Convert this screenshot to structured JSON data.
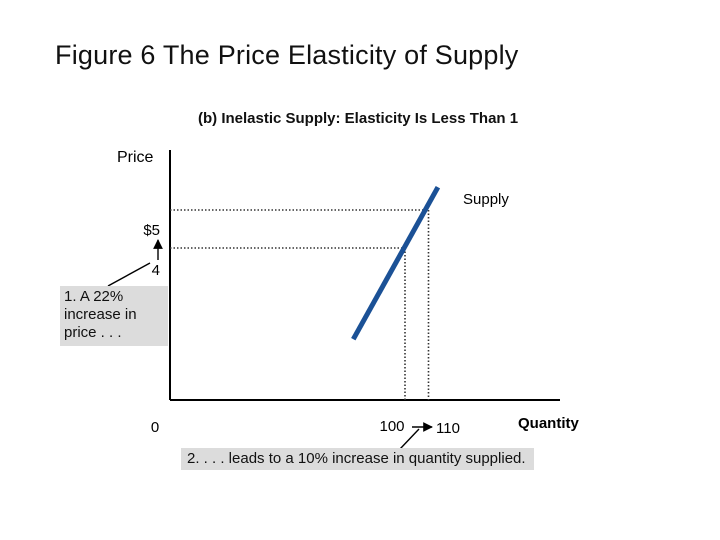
{
  "title": "Figure 6 The Price Elasticity of Supply",
  "chart_data": {
    "type": "line",
    "subtitle": "(b) Inelastic Supply: Elasticity Is Less Than 1",
    "ylabel": "Price",
    "xlabel": "Quantity",
    "series": [
      {
        "name": "Supply",
        "x": [
          78,
          114
        ],
        "y": [
          1.6,
          5.6
        ]
      }
    ],
    "points": [
      {
        "x": 100,
        "y": 4,
        "x_label": "100",
        "y_label": "4"
      },
      {
        "x": 110,
        "y": 5,
        "x_label": "110",
        "y_label": "$5"
      }
    ],
    "origin_label": "0",
    "xlim": [
      0,
      120
    ],
    "ylim": [
      0,
      7
    ],
    "annotations": [
      {
        "id": "price_increase",
        "text": "1. A 22% increase in price . . ."
      },
      {
        "id": "quantity_increase",
        "text": "2. . . . leads to a 10% increase in quantity supplied."
      }
    ],
    "line_color": "#1b5196",
    "guide_style": "dotted",
    "grid": false
  }
}
